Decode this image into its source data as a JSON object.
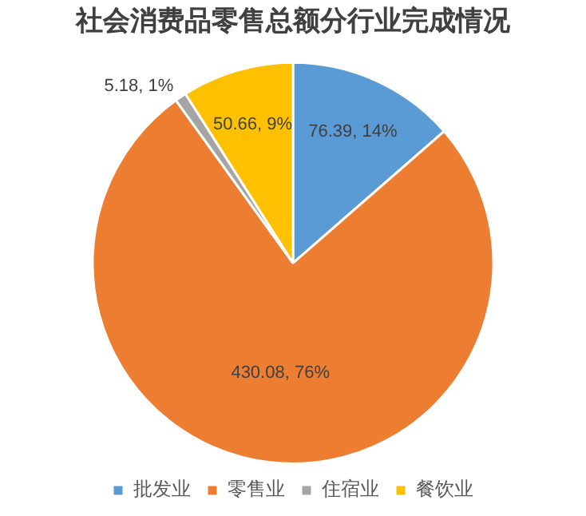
{
  "chart_data": {
    "type": "pie",
    "title": "社会消费品零售总额分行业完成情况",
    "categories": [
      "批发业",
      "零售业",
      "住宿业",
      "餐饮业"
    ],
    "values": [
      76.39,
      430.08,
      5.18,
      50.66
    ],
    "colors": [
      "#5b9bd5",
      "#ed7d31",
      "#a5a5a5",
      "#ffc000"
    ],
    "value_labels": [
      "76.39, 14%",
      "430.08, 76%",
      "5.18, 1%",
      "50.66, 9%"
    ],
    "legend": "bottom"
  }
}
